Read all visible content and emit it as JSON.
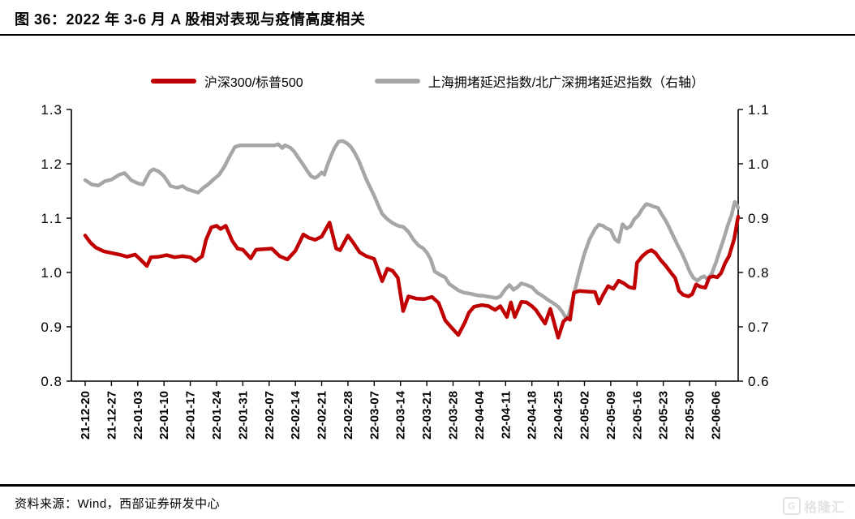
{
  "title": "图 36：2022 年 3-6 月 A 股相对表现与疫情高度相关",
  "source": "资料来源：Wind，西部证券研发中心",
  "watermark": "格隆汇",
  "watermark_icon": "G",
  "chart_data": {
    "type": "line",
    "title": "2022 年 3-6 月 A 股相对表现与疫情高度相关",
    "legend_position": "top-center",
    "grid": false,
    "legend": [
      {
        "name": "沪深300/标普500",
        "color": "#c00000",
        "axis": "left"
      },
      {
        "name": "上海拥堵延迟指数/北广深拥堵延迟指数（右轴）",
        "color": "#a6a6a6",
        "axis": "right"
      }
    ],
    "left_axis": {
      "min": 0.8,
      "max": 1.3,
      "ticks": [
        "1.3",
        "1.2",
        "1.1",
        "1.0",
        "0.9",
        "0.8"
      ]
    },
    "right_axis": {
      "min": 0.6,
      "max": 1.1,
      "ticks": [
        "1.1",
        "1.0",
        "0.9",
        "0.8",
        "0.7",
        "0.6"
      ]
    },
    "x_unit": "weeks since 21-12-20",
    "x_max": 24.85,
    "x_tick_labels": [
      "21-12-20",
      "21-12-27",
      "22-01-03",
      "22-01-10",
      "22-01-17",
      "22-01-24",
      "22-01-31",
      "22-02-07",
      "22-02-14",
      "22-02-21",
      "22-02-28",
      "22-03-07",
      "22-03-14",
      "22-03-21",
      "22-03-28",
      "22-04-04",
      "22-04-11",
      "22-04-18",
      "22-04-25",
      "22-05-02",
      "22-05-09",
      "22-05-16",
      "22-05-23",
      "22-05-30",
      "22-06-06"
    ],
    "series": [
      {
        "name": "上海拥堵延迟指数/北广深拥堵延迟指数（右轴）",
        "axis": "right",
        "color": "#a6a6a6",
        "points": [
          [
            0,
            0.97
          ],
          [
            0.25,
            0.962
          ],
          [
            0.5,
            0.96
          ],
          [
            0.75,
            0.968
          ],
          [
            1.0,
            0.971
          ],
          [
            1.3,
            0.98
          ],
          [
            1.5,
            0.983
          ],
          [
            1.75,
            0.97
          ],
          [
            2.0,
            0.964
          ],
          [
            2.2,
            0.962
          ],
          [
            2.45,
            0.985
          ],
          [
            2.6,
            0.99
          ],
          [
            2.8,
            0.986
          ],
          [
            3.0,
            0.977
          ],
          [
            3.25,
            0.959
          ],
          [
            3.5,
            0.956
          ],
          [
            3.7,
            0.959
          ],
          [
            3.9,
            0.953
          ],
          [
            4.1,
            0.95
          ],
          [
            4.3,
            0.947
          ],
          [
            4.5,
            0.956
          ],
          [
            4.7,
            0.963
          ],
          [
            4.9,
            0.972
          ],
          [
            5.1,
            0.98
          ],
          [
            5.3,
            0.995
          ],
          [
            5.5,
            1.014
          ],
          [
            5.7,
            1.031
          ],
          [
            5.9,
            1.034
          ],
          [
            6.4,
            1.034
          ],
          [
            6.9,
            1.034
          ],
          [
            7.2,
            1.034
          ],
          [
            7.35,
            1.036
          ],
          [
            7.5,
            1.029
          ],
          [
            7.6,
            1.034
          ],
          [
            7.8,
            1.03
          ],
          [
            7.95,
            1.023
          ],
          [
            8.1,
            1.012
          ],
          [
            8.3,
            0.998
          ],
          [
            8.45,
            0.987
          ],
          [
            8.6,
            0.977
          ],
          [
            8.75,
            0.974
          ],
          [
            8.85,
            0.977
          ],
          [
            9.0,
            0.984
          ],
          [
            9.1,
            0.98
          ],
          [
            9.2,
            0.995
          ],
          [
            9.35,
            1.014
          ],
          [
            9.5,
            1.03
          ],
          [
            9.65,
            1.041
          ],
          [
            9.8,
            1.042
          ],
          [
            9.95,
            1.038
          ],
          [
            10.1,
            1.032
          ],
          [
            10.25,
            1.021
          ],
          [
            10.4,
            1.007
          ],
          [
            10.55,
            0.989
          ],
          [
            10.7,
            0.971
          ],
          [
            10.85,
            0.956
          ],
          [
            11.0,
            0.941
          ],
          [
            11.15,
            0.924
          ],
          [
            11.3,
            0.908
          ],
          [
            11.5,
            0.898
          ],
          [
            11.7,
            0.891
          ],
          [
            11.9,
            0.886
          ],
          [
            12.1,
            0.884
          ],
          [
            12.3,
            0.875
          ],
          [
            12.5,
            0.86
          ],
          [
            12.7,
            0.849
          ],
          [
            12.85,
            0.845
          ],
          [
            13.0,
            0.837
          ],
          [
            13.15,
            0.824
          ],
          [
            13.3,
            0.802
          ],
          [
            13.5,
            0.796
          ],
          [
            13.7,
            0.791
          ],
          [
            13.85,
            0.779
          ],
          [
            14.0,
            0.774
          ],
          [
            14.2,
            0.767
          ],
          [
            14.4,
            0.763
          ],
          [
            14.65,
            0.761
          ],
          [
            14.9,
            0.758
          ],
          [
            15.15,
            0.757
          ],
          [
            15.4,
            0.755
          ],
          [
            15.65,
            0.753
          ],
          [
            15.8,
            0.756
          ],
          [
            16.0,
            0.77
          ],
          [
            16.15,
            0.777
          ],
          [
            16.3,
            0.768
          ],
          [
            16.45,
            0.773
          ],
          [
            16.6,
            0.78
          ],
          [
            16.8,
            0.777
          ],
          [
            17.0,
            0.773
          ],
          [
            17.2,
            0.763
          ],
          [
            17.4,
            0.757
          ],
          [
            17.6,
            0.75
          ],
          [
            17.8,
            0.744
          ],
          [
            18.0,
            0.737
          ],
          [
            18.15,
            0.728
          ],
          [
            18.3,
            0.716
          ],
          [
            18.4,
            0.722
          ],
          [
            18.6,
            0.76
          ],
          [
            18.8,
            0.8
          ],
          [
            19.0,
            0.835
          ],
          [
            19.2,
            0.862
          ],
          [
            19.4,
            0.88
          ],
          [
            19.55,
            0.888
          ],
          [
            19.7,
            0.886
          ],
          [
            19.85,
            0.881
          ],
          [
            20.0,
            0.878
          ],
          [
            20.15,
            0.862
          ],
          [
            20.3,
            0.856
          ],
          [
            20.45,
            0.889
          ],
          [
            20.6,
            0.881
          ],
          [
            20.75,
            0.885
          ],
          [
            20.9,
            0.898
          ],
          [
            21.05,
            0.905
          ],
          [
            21.2,
            0.917
          ],
          [
            21.35,
            0.926
          ],
          [
            21.5,
            0.924
          ],
          [
            21.65,
            0.921
          ],
          [
            21.8,
            0.919
          ],
          [
            21.95,
            0.906
          ],
          [
            22.1,
            0.895
          ],
          [
            22.25,
            0.88
          ],
          [
            22.4,
            0.865
          ],
          [
            22.55,
            0.85
          ],
          [
            22.7,
            0.836
          ],
          [
            22.85,
            0.82
          ],
          [
            23.0,
            0.802
          ],
          [
            23.15,
            0.79
          ],
          [
            23.3,
            0.785
          ],
          [
            23.45,
            0.791
          ],
          [
            23.55,
            0.793
          ],
          [
            23.7,
            0.787
          ],
          [
            23.85,
            0.799
          ],
          [
            24.0,
            0.818
          ],
          [
            24.15,
            0.84
          ],
          [
            24.3,
            0.862
          ],
          [
            24.45,
            0.886
          ],
          [
            24.6,
            0.906
          ],
          [
            24.72,
            0.93
          ],
          [
            24.8,
            0.924
          ],
          [
            24.85,
            0.919
          ]
        ]
      },
      {
        "name": "沪深300/标普500",
        "axis": "left",
        "color": "#c00000",
        "points": [
          [
            0,
            1.068
          ],
          [
            0.2,
            1.055
          ],
          [
            0.4,
            1.046
          ],
          [
            0.7,
            1.039
          ],
          [
            1.0,
            1.036
          ],
          [
            1.3,
            1.033
          ],
          [
            1.6,
            1.029
          ],
          [
            1.9,
            1.033
          ],
          [
            2.1,
            1.024
          ],
          [
            2.35,
            1.012
          ],
          [
            2.5,
            1.028
          ],
          [
            2.8,
            1.029
          ],
          [
            3.1,
            1.032
          ],
          [
            3.4,
            1.028
          ],
          [
            3.7,
            1.03
          ],
          [
            4.0,
            1.028
          ],
          [
            4.2,
            1.021
          ],
          [
            4.45,
            1.03
          ],
          [
            4.6,
            1.06
          ],
          [
            4.8,
            1.083
          ],
          [
            5.0,
            1.086
          ],
          [
            5.15,
            1.08
          ],
          [
            5.35,
            1.086
          ],
          [
            5.6,
            1.058
          ],
          [
            5.8,
            1.044
          ],
          [
            6.0,
            1.042
          ],
          [
            6.3,
            1.026
          ],
          [
            6.5,
            1.042
          ],
          [
            6.8,
            1.043
          ],
          [
            7.1,
            1.044
          ],
          [
            7.4,
            1.03
          ],
          [
            7.7,
            1.024
          ],
          [
            8.0,
            1.04
          ],
          [
            8.3,
            1.07
          ],
          [
            8.5,
            1.064
          ],
          [
            8.75,
            1.06
          ],
          [
            9.0,
            1.066
          ],
          [
            9.3,
            1.092
          ],
          [
            9.55,
            1.044
          ],
          [
            9.7,
            1.041
          ],
          [
            10.0,
            1.068
          ],
          [
            10.2,
            1.055
          ],
          [
            10.45,
            1.037
          ],
          [
            10.7,
            1.03
          ],
          [
            11.0,
            1.025
          ],
          [
            11.3,
            0.984
          ],
          [
            11.5,
            1.007
          ],
          [
            11.7,
            1.003
          ],
          [
            11.9,
            0.99
          ],
          [
            12.1,
            0.929
          ],
          [
            12.3,
            0.956
          ],
          [
            12.6,
            0.952
          ],
          [
            12.9,
            0.951
          ],
          [
            13.2,
            0.955
          ],
          [
            13.45,
            0.944
          ],
          [
            13.7,
            0.912
          ],
          [
            13.95,
            0.898
          ],
          [
            14.2,
            0.885
          ],
          [
            14.45,
            0.908
          ],
          [
            14.6,
            0.926
          ],
          [
            14.8,
            0.937
          ],
          [
            15.1,
            0.94
          ],
          [
            15.35,
            0.938
          ],
          [
            15.6,
            0.931
          ],
          [
            15.8,
            0.938
          ],
          [
            16.05,
            0.918
          ],
          [
            16.2,
            0.945
          ],
          [
            16.35,
            0.918
          ],
          [
            16.6,
            0.946
          ],
          [
            16.8,
            0.945
          ],
          [
            17.0,
            0.938
          ],
          [
            17.15,
            0.931
          ],
          [
            17.5,
            0.906
          ],
          [
            17.7,
            0.933
          ],
          [
            18.0,
            0.88
          ],
          [
            18.2,
            0.91
          ],
          [
            18.35,
            0.916
          ],
          [
            18.45,
            0.913
          ],
          [
            18.6,
            0.963
          ],
          [
            18.8,
            0.966
          ],
          [
            19.1,
            0.965
          ],
          [
            19.4,
            0.964
          ],
          [
            19.55,
            0.943
          ],
          [
            19.7,
            0.958
          ],
          [
            19.9,
            0.975
          ],
          [
            20.1,
            0.97
          ],
          [
            20.3,
            0.985
          ],
          [
            20.5,
            0.98
          ],
          [
            20.7,
            0.973
          ],
          [
            20.9,
            0.971
          ],
          [
            21.0,
            1.018
          ],
          [
            21.2,
            1.03
          ],
          [
            21.4,
            1.038
          ],
          [
            21.55,
            1.041
          ],
          [
            21.7,
            1.036
          ],
          [
            21.9,
            1.023
          ],
          [
            22.1,
            1.012
          ],
          [
            22.3,
            0.999
          ],
          [
            22.45,
            0.99
          ],
          [
            22.6,
            0.966
          ],
          [
            22.75,
            0.959
          ],
          [
            22.95,
            0.956
          ],
          [
            23.1,
            0.96
          ],
          [
            23.25,
            0.978
          ],
          [
            23.4,
            0.974
          ],
          [
            23.6,
            0.972
          ],
          [
            23.75,
            0.991
          ],
          [
            23.9,
            0.993
          ],
          [
            24.05,
            0.991
          ],
          [
            24.2,
            0.999
          ],
          [
            24.35,
            1.017
          ],
          [
            24.5,
            1.03
          ],
          [
            24.6,
            1.046
          ],
          [
            24.7,
            1.062
          ],
          [
            24.8,
            1.09
          ],
          [
            24.85,
            1.103
          ]
        ]
      }
    ]
  }
}
